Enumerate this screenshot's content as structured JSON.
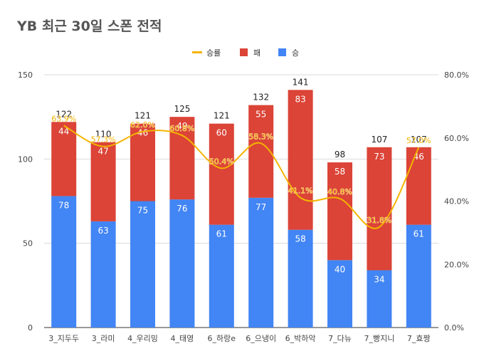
{
  "chart_data": {
    "type": "bar",
    "title": "YB 최근 30일 스폰 전적",
    "categories": [
      "3_지두두",
      "3_라미",
      "4_우리밍",
      "4_태영",
      "6_하랑e",
      "6_으냉이",
      "6_박하악",
      "7_다뉴",
      "7_빵지니",
      "7_효짱"
    ],
    "series": [
      {
        "name": "승",
        "values": [
          78,
          63,
          75,
          76,
          61,
          77,
          58,
          40,
          34,
          61
        ],
        "color": "#4285f4"
      },
      {
        "name": "패",
        "values": [
          44,
          47,
          46,
          49,
          60,
          55,
          83,
          58,
          73,
          46
        ],
        "color": "#db4437"
      }
    ],
    "totals": [
      122,
      110,
      121,
      125,
      121,
      132,
      141,
      98,
      107,
      107
    ],
    "line_series": {
      "name": "승률",
      "values": [
        63.9,
        57.3,
        62.0,
        60.8,
        50.4,
        58.3,
        41.1,
        40.8,
        31.8,
        57.0
      ],
      "labels": [
        "63.9%",
        "57.3%",
        "62.0%",
        "60.8%",
        "50.4%",
        "58.3%",
        "41.1%",
        "40.8%",
        "31.8%",
        "57.0%"
      ],
      "color": "#f4b400"
    },
    "legend_order": [
      "승률",
      "패",
      "승"
    ],
    "legend_position": "top",
    "ylim": [
      0,
      150
    ],
    "y_ticks": [
      "0",
      "50",
      "100",
      "150"
    ],
    "y2lim": [
      0,
      80
    ],
    "y2_ticks": [
      "0.0%",
      "20.0%",
      "40.0%",
      "60.0%",
      "80.0%"
    ],
    "xlabel": "",
    "ylabel": "",
    "grid": true
  }
}
